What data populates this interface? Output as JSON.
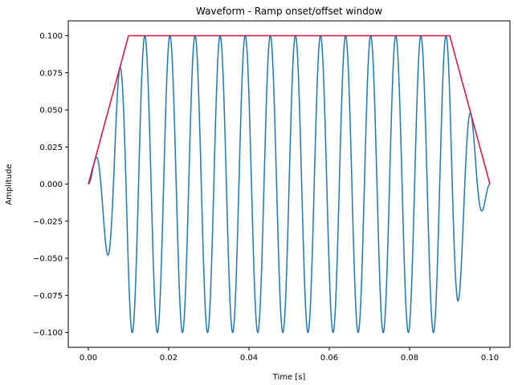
{
  "chart_data": {
    "type": "line",
    "title": "Waveform - Ramp onset/offset window",
    "xlabel": "Time [s]",
    "ylabel": "Amplitude",
    "xlim": [
      -0.005,
      0.105
    ],
    "ylim": [
      -0.11,
      0.11
    ],
    "x_ticks": [
      0.0,
      0.02,
      0.04,
      0.06,
      0.08,
      0.1
    ],
    "x_tick_labels": [
      "0.00",
      "0.02",
      "0.04",
      "0.06",
      "0.08",
      "0.10"
    ],
    "y_ticks": [
      -0.1,
      -0.075,
      -0.05,
      -0.025,
      0.0,
      0.025,
      0.05,
      0.075,
      0.1
    ],
    "y_tick_labels": [
      "−0.100",
      "−0.075",
      "−0.050",
      "−0.025",
      "0.000",
      "0.025",
      "0.050",
      "0.075",
      "0.100"
    ],
    "grid": false,
    "series": [
      {
        "color": "#1f77b4",
        "waveform": {
          "amplitude": 0.1,
          "frequency_hz": 160,
          "phase": "sine",
          "duration_s": 0.1,
          "ramp_s": 0.01
        }
      },
      {
        "color": "#d6113f",
        "x": [
          0.0,
          0.01,
          0.09,
          0.1
        ],
        "y": [
          0.0,
          0.1,
          0.1,
          0.0
        ]
      }
    ]
  }
}
